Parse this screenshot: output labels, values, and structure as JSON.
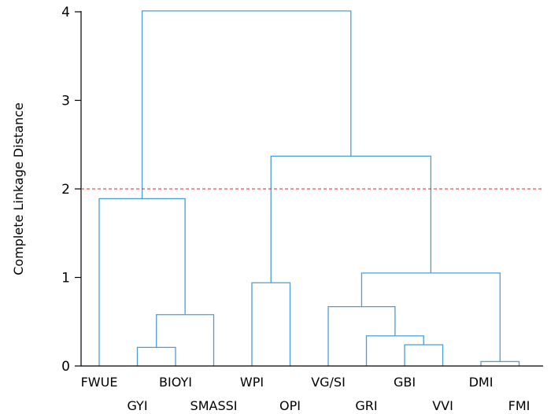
{
  "chart_data": {
    "type": "dendrogram",
    "title": "",
    "xlabel": "",
    "ylabel": "Complete Linkage Distance",
    "ylim": [
      0,
      4
    ],
    "yticks": [
      0,
      1,
      2,
      3,
      4
    ],
    "grid": false,
    "leaves": [
      "FWUE",
      "GYI",
      "BIOYI",
      "SMASSI",
      "WPI",
      "OPI",
      "VG/SI",
      "GRI",
      "GBI",
      "VVI",
      "DMI",
      "FMI"
    ],
    "cut_threshold": 2.0,
    "merges": [
      {
        "left": 1,
        "right": 2,
        "height": 0.21
      },
      {
        "left": 12,
        "right": 3,
        "height": 0.58
      },
      {
        "left": 0,
        "right": 13,
        "height": 1.89
      },
      {
        "left": 4,
        "right": 5,
        "height": 0.94
      },
      {
        "left": 8,
        "right": 9,
        "height": 0.24
      },
      {
        "left": 7,
        "right": 16,
        "height": 0.34
      },
      {
        "left": 6,
        "right": 17,
        "height": 0.67
      },
      {
        "left": 10,
        "right": 11,
        "height": 0.05
      },
      {
        "left": 18,
        "right": 19,
        "height": 1.05
      },
      {
        "left": 15,
        "right": 20,
        "height": 2.37
      },
      {
        "left": 14,
        "right": 21,
        "height": 4.01
      }
    ],
    "colors": {
      "links": "#4a9fd8",
      "threshold": "#e02020",
      "axis": "#000000"
    }
  }
}
